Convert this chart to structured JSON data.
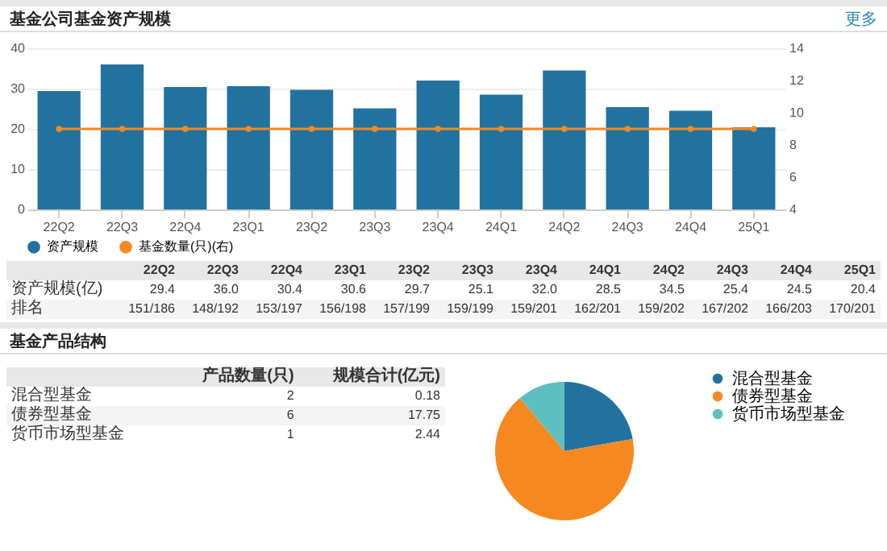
{
  "chart_data": [
    {
      "type": "bar",
      "title": "基金公司基金资产规模",
      "categories": [
        "22Q2",
        "22Q3",
        "22Q4",
        "23Q1",
        "23Q2",
        "23Q3",
        "23Q4",
        "24Q1",
        "24Q2",
        "24Q3",
        "24Q4",
        "25Q1"
      ],
      "series": [
        {
          "name": "资产规模",
          "type": "bar",
          "color": "#2272a0",
          "values": [
            29.4,
            36.0,
            30.4,
            30.6,
            29.7,
            25.1,
            32.0,
            28.5,
            34.5,
            25.4,
            24.5,
            20.4
          ]
        },
        {
          "name": "基金数量(只)(右)",
          "type": "line",
          "axis": "y2",
          "color": "#f5891f",
          "values": [
            9,
            9,
            9,
            9,
            9,
            9,
            9,
            9,
            9,
            9,
            9,
            9
          ]
        }
      ],
      "ylim": [
        0,
        40
      ],
      "yticks": [
        0,
        10,
        20,
        30,
        40
      ],
      "y2lim": [
        4,
        14
      ],
      "y2ticks": [
        4,
        6,
        8,
        10,
        12,
        14
      ],
      "grid": "y",
      "legend": "bottom",
      "marker": "circle",
      "annotations": [
        "更多"
      ]
    },
    {
      "type": "other",
      "categories": [
        "22Q2",
        "22Q3",
        "22Q4",
        "23Q1",
        "23Q2",
        "23Q3",
        "23Q4",
        "24Q1",
        "24Q2",
        "24Q3",
        "24Q4",
        "25Q1"
      ],
      "series": [
        {
          "name": "资产规模(亿)",
          "values": [
            29.4,
            36.0,
            30.4,
            30.6,
            29.7,
            25.1,
            32.0,
            28.5,
            34.5,
            25.4,
            24.5,
            20.4
          ],
          "value_labels": [
            "29.4",
            "36.0",
            "30.4",
            "30.6",
            "29.7",
            "25.1",
            "32.0",
            "28.5",
            "34.5",
            "25.4",
            "24.5",
            "20.4"
          ]
        }
      ],
      "data_labels": true,
      "annotations": [
        "排名",
        "151/186",
        "148/192",
        "153/197",
        "156/198",
        "157/199",
        "159/199",
        "159/201",
        "162/201",
        "159/202",
        "167/202",
        "166/203",
        "170/201"
      ]
    },
    {
      "type": "other",
      "title": "基金产品结构",
      "categories": [
        "混合型基金",
        "债券型基金",
        "货币市场型基金"
      ],
      "series": [
        {
          "name": "产品数量(只)",
          "values": [
            2,
            6,
            1
          ]
        },
        {
          "name": "规模合计(亿元)",
          "values": [
            0.18,
            17.75,
            2.44
          ]
        }
      ],
      "data_labels": true
    },
    {
      "type": "pie",
      "categories": [
        "混合型基金",
        "债券型基金",
        "货币市场型基金"
      ],
      "values": [
        22.2,
        66.7,
        11.1
      ],
      "colors": [
        "#2272a0",
        "#f5891f",
        "#5fbfbf"
      ],
      "legend": "right"
    }
  ]
}
